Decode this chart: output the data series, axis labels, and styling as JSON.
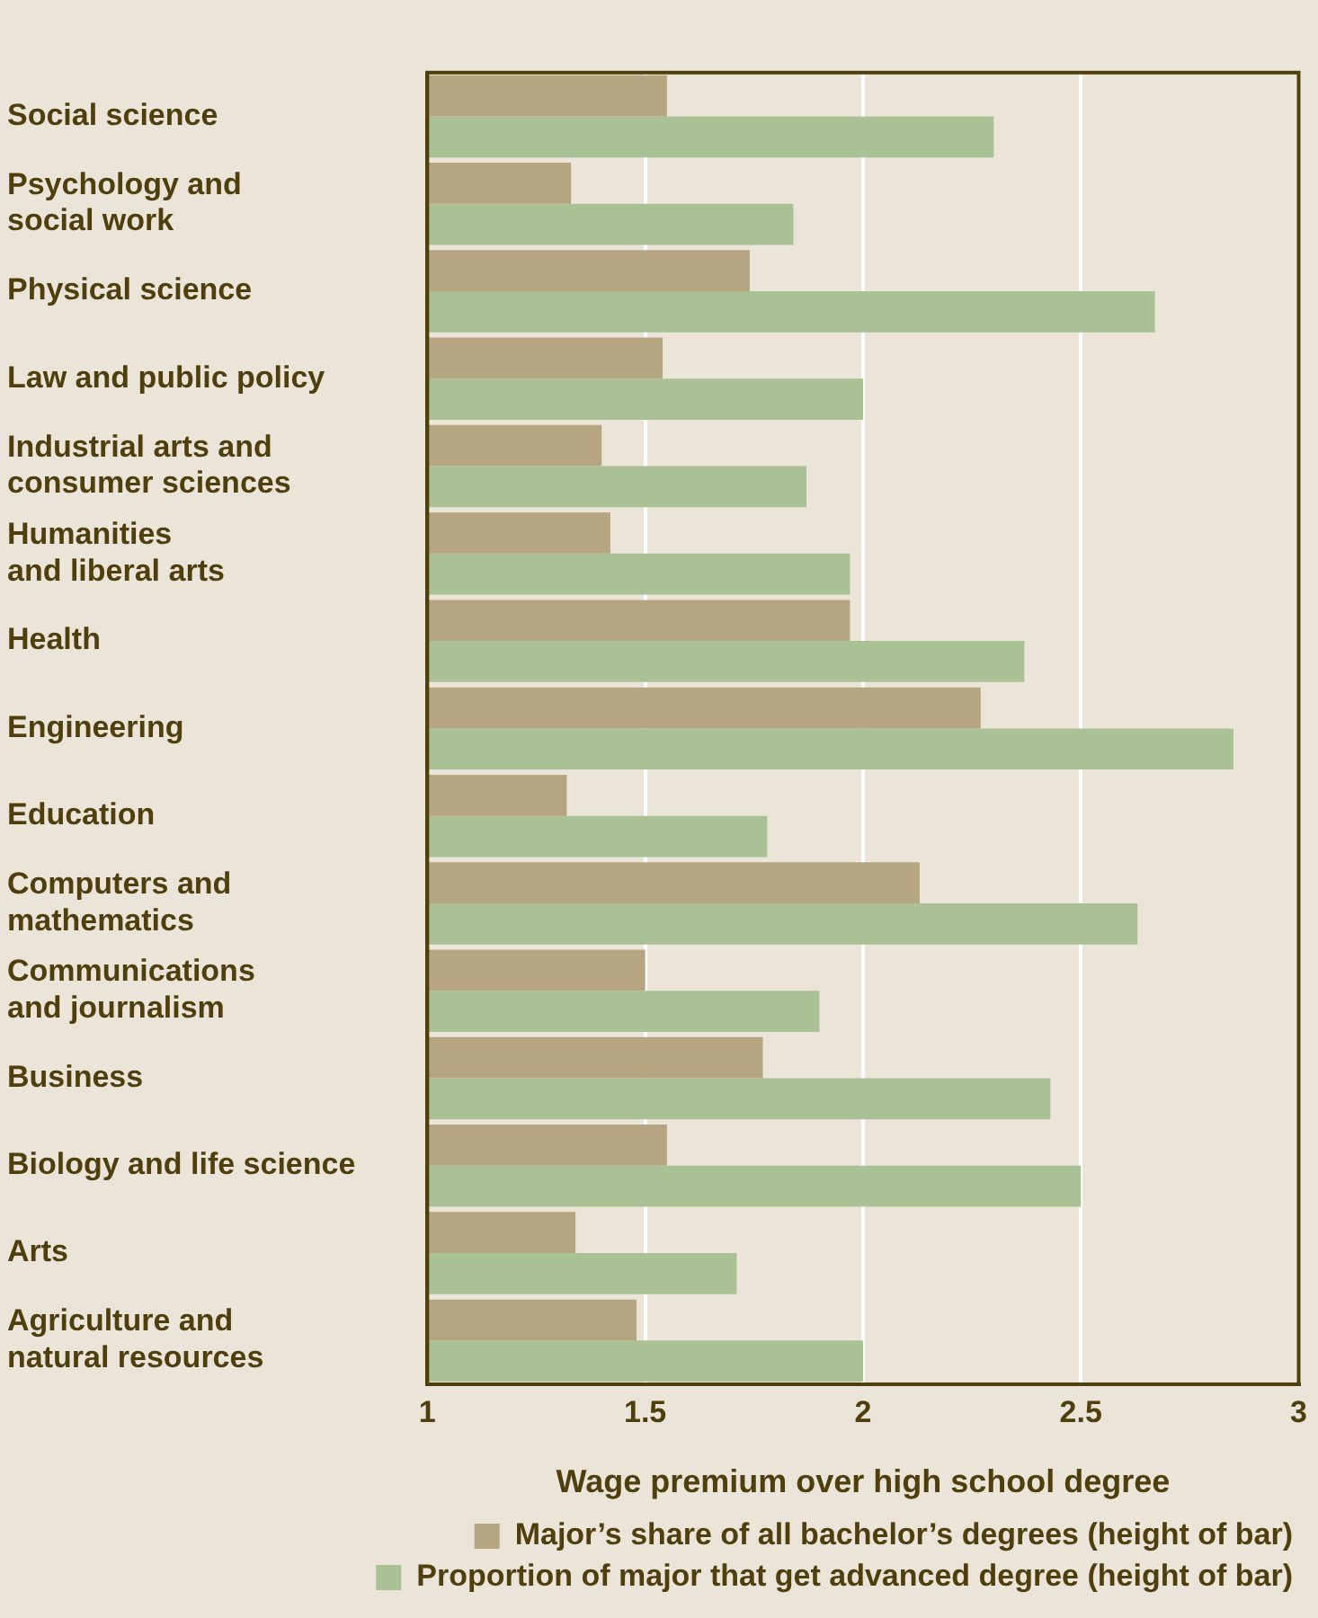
{
  "chart_data": {
    "type": "bar",
    "orientation": "horizontal",
    "xlabel": "Wage premium over high school degree",
    "categories": [
      "Social science",
      "Psychology and\nsocial work",
      "Physical science",
      "Law and public policy",
      "Industrial arts and\nconsumer sciences",
      "Humanities\nand liberal arts",
      "Health",
      "Engineering",
      "Education",
      "Computers and\nmathematics",
      "Communications\nand journalism",
      "Business",
      "Biology and life science",
      "Arts",
      "Agriculture and\nnatural resources"
    ],
    "series": [
      {
        "name": "Major’s share of all bachelor’s degrees (height of bar)",
        "color": "#b5a580",
        "values": [
          1.55,
          1.33,
          1.74,
          1.54,
          1.4,
          1.42,
          1.97,
          2.27,
          1.32,
          2.13,
          1.5,
          1.77,
          1.55,
          1.34,
          1.48
        ]
      },
      {
        "name": "Proportion of major that get advanced degree (height of bar)",
        "color": "#a9c195",
        "values": [
          2.3,
          1.84,
          2.67,
          2.0,
          1.87,
          1.97,
          2.37,
          2.85,
          1.78,
          2.63,
          1.9,
          2.43,
          2.5,
          1.71,
          2.0
        ]
      }
    ],
    "xlim": [
      1,
      3
    ],
    "xticks": [
      1,
      1.5,
      2,
      2.5,
      3
    ],
    "grid": "x",
    "legend": "bottom"
  }
}
